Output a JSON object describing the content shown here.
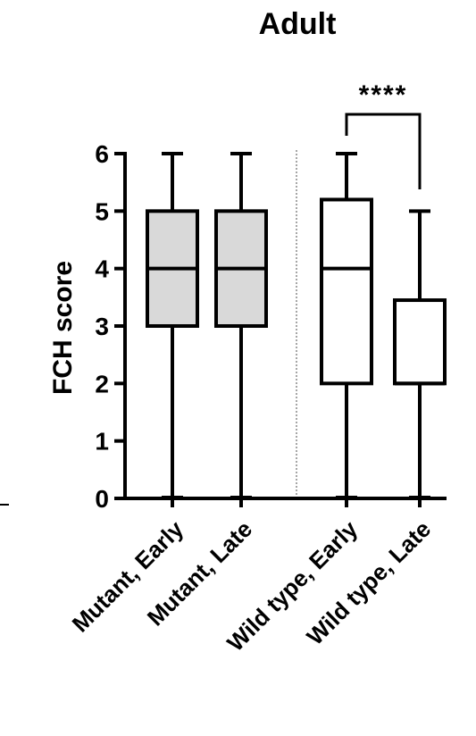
{
  "chart_data": {
    "type": "box",
    "title": "Adult",
    "ylabel": "FCH score",
    "xlabel": "",
    "ylim": [
      0,
      6
    ],
    "yticks": [
      "0",
      "1",
      "2",
      "3",
      "4",
      "5",
      "6"
    ],
    "categories": [
      "Mutant, Early",
      "Mutant, Late",
      "Wild type, Early",
      "Wild type, Late"
    ],
    "boxes": [
      {
        "category": "Mutant, Early",
        "min": 0,
        "q1": 3,
        "median": 4,
        "q3": 5,
        "max": 6,
        "fill": "#d9d9d9"
      },
      {
        "category": "Mutant, Late",
        "min": 0,
        "q1": 3,
        "median": 4,
        "q3": 5,
        "max": 6,
        "fill": "#d9d9d9"
      },
      {
        "category": "Wild type, Early",
        "min": 0,
        "q1": 2,
        "median": 4,
        "q3": 5.2,
        "max": 6,
        "fill": "#ffffff"
      },
      {
        "category": "Wild type, Late",
        "min": 0,
        "q1": 2,
        "median": 2,
        "q3": 3.45,
        "max": 5,
        "fill": "#ffffff"
      }
    ],
    "significance": {
      "from": "Wild type, Early",
      "to": "Wild type, Late",
      "label": "****"
    },
    "divider_after": "Mutant, Late",
    "grid": false,
    "colors": {
      "line": "#000000",
      "mutant_fill": "#d9d9d9",
      "wildtype_fill": "#ffffff",
      "divider": "#888888"
    }
  }
}
